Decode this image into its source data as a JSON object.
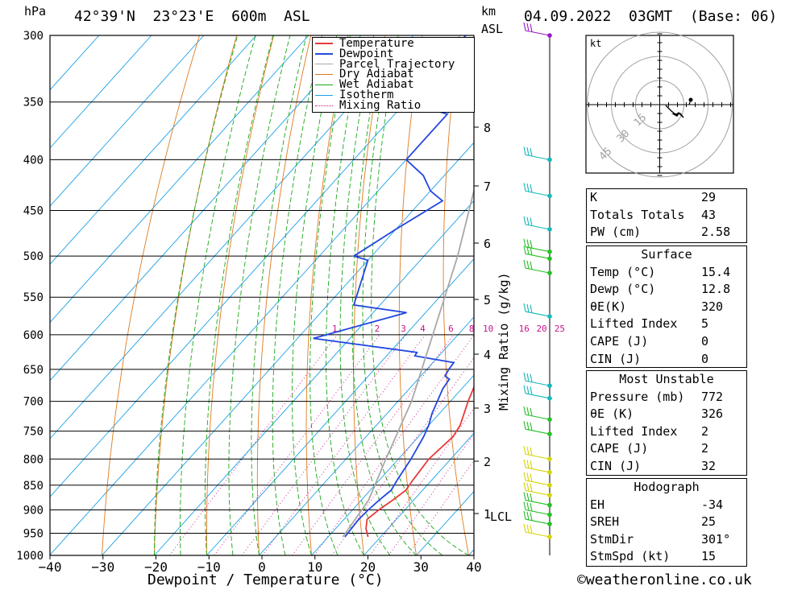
{
  "header": {
    "location": "42°39'N  23°23'E  600m  ASL",
    "date": "04.09.2022  03GMT  (Base: 06)",
    "hpa_label": "hPa",
    "km_label": "km",
    "asl_label": "ASL"
  },
  "legend": [
    "Temperature",
    "Dewpoint",
    "Parcel Trajectory",
    "Dry Adiabat",
    "Wet Adiabat",
    "Isotherm",
    "Mixing Ratio"
  ],
  "colors": {
    "temperature": "#e8393a",
    "dewpoint": "#2247e0",
    "parcel": "#a8a8a8",
    "dry_adiabat": "#e07a1f",
    "wet_adiabat": "#18a818",
    "isotherm": "#1aa0e8",
    "mixing_ratio": "#c8148c",
    "wind_low": "#d4d40a",
    "wind_mid": "#24c024",
    "wind_high": "#14b8b8",
    "wind_top": "#9b18c8"
  },
  "chart_data": {
    "type": "line",
    "title": "Skew-T log-P diagram",
    "xlabel": "Dewpoint / Temperature (°C)",
    "ylabel": "hPa",
    "mixing_ratio_label": "Mixing Ratio (g/kg)",
    "x_ticks": [
      "-40",
      "-30",
      "-20",
      "-10",
      "0",
      "10",
      "20",
      "30",
      "40"
    ],
    "pressure_levels": [
      300,
      350,
      400,
      450,
      500,
      550,
      600,
      650,
      700,
      750,
      800,
      850,
      900,
      950,
      1000
    ],
    "height_ticks_km": [
      "8",
      "7",
      "6",
      "5",
      "4",
      "3",
      "2",
      "1"
    ],
    "lcl_label": "LCL",
    "mixing_ratio_ticks": [
      "1",
      "2",
      "3",
      "4",
      "6",
      "8",
      "10",
      "16",
      "20",
      "25"
    ],
    "series": [
      {
        "name": "Temperature",
        "points": [
          [
            958,
            17.6
          ],
          [
            940,
            15.8
          ],
          [
            920,
            14.4
          ],
          [
            900,
            15.0
          ],
          [
            880,
            16.0
          ],
          [
            860,
            16.8
          ],
          [
            840,
            16.4
          ],
          [
            800,
            15.8
          ],
          [
            760,
            16.6
          ],
          [
            740,
            16.0
          ],
          [
            700,
            13.4
          ],
          [
            650,
            10.4
          ],
          [
            635,
            9.0
          ],
          [
            625,
            9.8
          ],
          [
            610,
            10.6
          ],
          [
            595,
            9.2
          ],
          [
            560,
            6.8
          ],
          [
            500,
            2.6
          ],
          [
            450,
            -4.0
          ],
          [
            420,
            -8.0
          ],
          [
            400,
            -10.0
          ],
          [
            360,
            -18.0
          ],
          [
            340,
            -20.0
          ],
          [
            320,
            -24.0
          ],
          [
            300,
            -28.0
          ]
        ]
      },
      {
        "name": "Dewpoint",
        "points": [
          [
            958,
            13.2
          ],
          [
            940,
            13.0
          ],
          [
            920,
            12.8
          ],
          [
            900,
            13.0
          ],
          [
            880,
            13.4
          ],
          [
            860,
            14.0
          ],
          [
            840,
            13.4
          ],
          [
            800,
            12.4
          ],
          [
            760,
            11.0
          ],
          [
            740,
            10.0
          ],
          [
            720,
            8.6
          ],
          [
            680,
            6.4
          ],
          [
            665,
            6.0
          ],
          [
            660,
            4.6
          ],
          [
            650,
            4.2
          ],
          [
            640,
            4.0
          ],
          [
            630,
            -4.6
          ],
          [
            625,
            -4.8
          ],
          [
            605,
            -27.0
          ],
          [
            570,
            -13.6
          ],
          [
            560,
            -25.0
          ],
          [
            505,
            -30.0
          ],
          [
            500,
            -33.4
          ],
          [
            470,
            -30.0
          ],
          [
            440,
            -26.0
          ],
          [
            430,
            -30.0
          ],
          [
            415,
            -34.0
          ],
          [
            400,
            -40.0
          ],
          [
            360,
            -40.0
          ],
          [
            350,
            -50.0
          ],
          [
            300,
            -50.0
          ]
        ]
      },
      {
        "name": "Parcel Trajectory",
        "points": [
          [
            958,
            12.8
          ],
          [
            880,
            11.4
          ],
          [
            800,
            7.6
          ],
          [
            700,
            2.6
          ],
          [
            600,
            -4.8
          ],
          [
            500,
            -13.6
          ],
          [
            400,
            -25.6
          ],
          [
            300,
            -42.8
          ]
        ]
      }
    ],
    "wind_barbs": [
      {
        "p": 300,
        "color_key": "wind_top"
      },
      {
        "p": 400,
        "color_key": "wind_high"
      },
      {
        "p": 435,
        "color_key": "wind_high"
      },
      {
        "p": 470,
        "color_key": "wind_high"
      },
      {
        "p": 495,
        "color_key": "wind_mid"
      },
      {
        "p": 503,
        "color_key": "wind_mid"
      },
      {
        "p": 520,
        "color_key": "wind_mid"
      },
      {
        "p": 575,
        "color_key": "wind_high"
      },
      {
        "p": 675,
        "color_key": "wind_high"
      },
      {
        "p": 695,
        "color_key": "wind_high"
      },
      {
        "p": 730,
        "color_key": "wind_mid"
      },
      {
        "p": 755,
        "color_key": "wind_mid"
      },
      {
        "p": 800,
        "color_key": "wind_low"
      },
      {
        "p": 825,
        "color_key": "wind_low"
      },
      {
        "p": 850,
        "color_key": "wind_low"
      },
      {
        "p": 870,
        "color_key": "wind_low"
      },
      {
        "p": 890,
        "color_key": "wind_mid"
      },
      {
        "p": 910,
        "color_key": "wind_mid"
      },
      {
        "p": 930,
        "color_key": "wind_mid"
      },
      {
        "p": 958,
        "color_key": "wind_low"
      }
    ],
    "hodograph": {
      "unit": "kt",
      "ring_labels": [
        "15",
        "30",
        "45"
      ]
    }
  },
  "indices": {
    "rows": [
      [
        "K",
        "29"
      ],
      [
        "Totals Totals",
        "43"
      ],
      [
        "PW (cm)",
        "2.58"
      ]
    ]
  },
  "surface": {
    "title": "Surface",
    "rows": [
      [
        "Temp (°C)",
        "15.4"
      ],
      [
        "Dewp (°C)",
        "12.8"
      ],
      [
        "θE(K)",
        "320"
      ],
      [
        "Lifted Index",
        "5"
      ],
      [
        "CAPE (J)",
        "0"
      ],
      [
        "CIN (J)",
        "0"
      ]
    ]
  },
  "most_unstable": {
    "title": "Most Unstable",
    "rows": [
      [
        "Pressure (mb)",
        "772"
      ],
      [
        "θE (K)",
        "326"
      ],
      [
        "Lifted Index",
        "2"
      ],
      [
        "CAPE (J)",
        "2"
      ],
      [
        "CIN (J)",
        "32"
      ]
    ]
  },
  "hodograph_table": {
    "title": "Hodograph",
    "rows": [
      [
        "EH",
        "-34"
      ],
      [
        "SREH",
        "25"
      ],
      [
        "StmDir",
        "301°"
      ],
      [
        "StmSpd (kt)",
        "15"
      ]
    ]
  },
  "footer": "©weatheronline.co.uk"
}
